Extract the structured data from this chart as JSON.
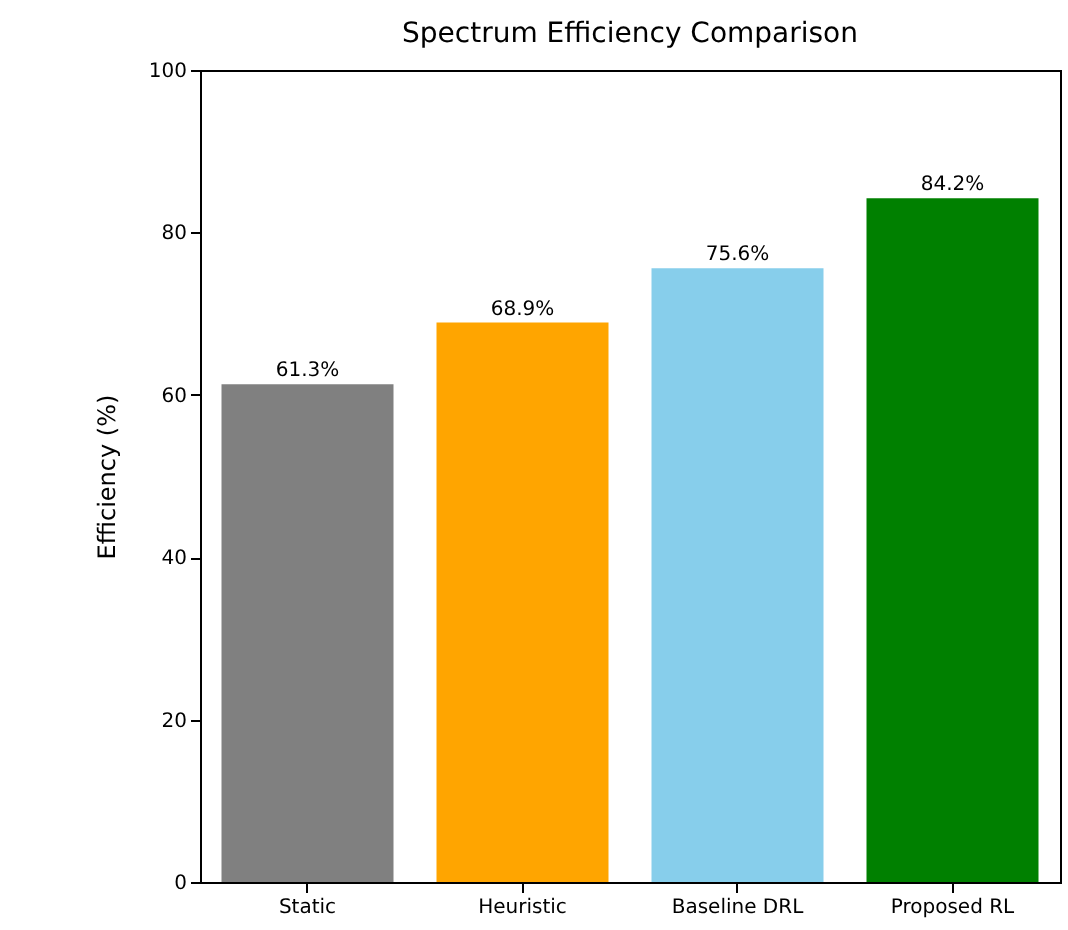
{
  "chart_data": {
    "type": "bar",
    "title": "Spectrum Efficiency Comparison",
    "ylabel": "Efficiency (%)",
    "categories": [
      "Static",
      "Heuristic",
      "Baseline DRL",
      "Proposed RL"
    ],
    "values": [
      61.3,
      68.9,
      75.6,
      84.2
    ],
    "colors": [
      "#808080",
      "#ffa500",
      "#87ceeb",
      "#008000"
    ],
    "value_labels": [
      "61.3%",
      "68.9%",
      "75.6%",
      "84.2%"
    ],
    "ylim": [
      0,
      100
    ],
    "yticks": [
      0,
      20,
      40,
      60,
      80,
      100
    ]
  }
}
